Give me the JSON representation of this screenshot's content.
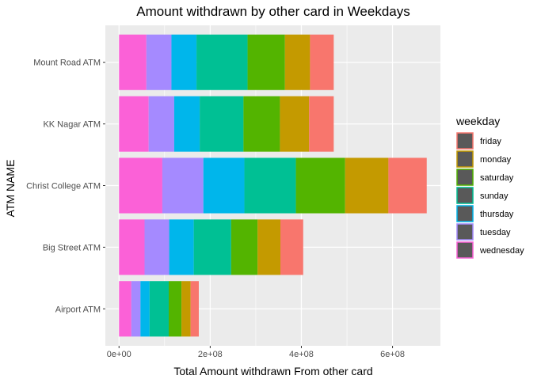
{
  "chart_data": {
    "type": "bar",
    "orientation": "horizontal",
    "stacked": true,
    "title": "Amount withdrawn by other card in Weekdays",
    "xlabel": "Total Amount withdrawn From other card",
    "ylabel": "ATM NAME",
    "xlim": [
      -30000000,
      705000000
    ],
    "x_ticks": [
      0,
      200000000,
      400000000,
      600000000
    ],
    "x_tick_labels": [
      "0e+00",
      "2e+08",
      "4e+08",
      "6e+08"
    ],
    "x_minor_ticks": [
      100000000,
      300000000,
      500000000
    ],
    "categories": [
      "Mount Road ATM",
      "KK Nagar ATM",
      "Christ College ATM",
      "Big Street ATM",
      "Airport ATM"
    ],
    "legend": {
      "title": "weekday",
      "position": "right",
      "entries": [
        "friday",
        "monday",
        "saturday",
        "sunday",
        "thursday",
        "tuesday",
        "wednesday"
      ]
    },
    "grid": true,
    "stack_order_left_to_right": [
      "wednesday",
      "tuesday",
      "thursday",
      "sunday",
      "saturday",
      "monday",
      "friday"
    ],
    "series": [
      {
        "name": "friday",
        "color": "#F8766D",
        "values": [
          52000000,
          54000000,
          84000000,
          50000000,
          18000000
        ]
      },
      {
        "name": "monday",
        "color": "#C49A00",
        "values": [
          55000000,
          64000000,
          95000000,
          50000000,
          20000000
        ]
      },
      {
        "name": "saturday",
        "color": "#53B400",
        "values": [
          82000000,
          80000000,
          108000000,
          58000000,
          28000000
        ]
      },
      {
        "name": "sunday",
        "color": "#00C094",
        "values": [
          112000000,
          96000000,
          113000000,
          82000000,
          42000000
        ]
      },
      {
        "name": "thursday",
        "color": "#00B6EB",
        "values": [
          55000000,
          56000000,
          90000000,
          54000000,
          20000000
        ]
      },
      {
        "name": "tuesday",
        "color": "#A58AFF",
        "values": [
          55000000,
          56000000,
          90000000,
          54000000,
          20000000
        ]
      },
      {
        "name": "wednesday",
        "color": "#FB61D7",
        "values": [
          60000000,
          65000000,
          95000000,
          56000000,
          27000000
        ]
      }
    ]
  }
}
